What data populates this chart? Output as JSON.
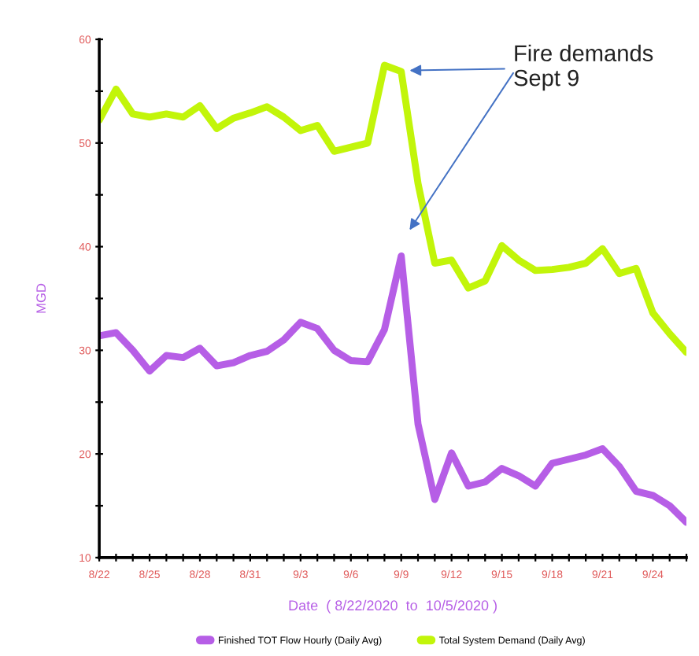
{
  "chart_data": {
    "type": "line",
    "xlabel": "Date  ( 8/22/2020  to  10/5/2020 )",
    "ylabel": "MGD",
    "x": [
      "2020-08-22",
      "2020-08-23",
      "2020-08-24",
      "2020-08-25",
      "2020-08-26",
      "2020-08-27",
      "2020-08-28",
      "2020-08-29",
      "2020-08-30",
      "2020-08-31",
      "2020-09-01",
      "2020-09-02",
      "2020-09-03",
      "2020-09-04",
      "2020-09-05",
      "2020-09-06",
      "2020-09-07",
      "2020-09-08",
      "2020-09-09",
      "2020-09-10",
      "2020-09-11",
      "2020-09-12",
      "2020-09-13",
      "2020-09-14",
      "2020-09-15",
      "2020-09-16",
      "2020-09-17",
      "2020-09-18",
      "2020-09-19",
      "2020-09-20",
      "2020-09-21",
      "2020-09-22",
      "2020-09-23",
      "2020-09-24",
      "2020-09-25",
      "2020-09-26"
    ],
    "series": [
      {
        "name": "Finished TOT Flow Hourly (Daily Avg)",
        "color": "#b65ee6",
        "values": [
          31.4,
          31.7,
          30.0,
          28.0,
          29.5,
          29.3,
          30.2,
          28.5,
          28.8,
          29.5,
          29.9,
          31.0,
          32.7,
          32.1,
          30.0,
          29.0,
          28.9,
          32.0,
          39.1,
          22.9,
          15.6,
          20.1,
          16.9,
          17.3,
          18.6,
          17.9,
          16.9,
          19.1,
          19.5,
          19.9,
          20.5,
          18.8,
          16.4,
          16.0,
          15.0,
          13.4
        ]
      },
      {
        "name": "Total System Demand (Daily Avg)",
        "color": "#c2f50a",
        "values": [
          52.2,
          55.2,
          52.8,
          52.5,
          52.8,
          52.5,
          53.6,
          51.4,
          52.4,
          52.9,
          53.5,
          52.5,
          51.2,
          51.7,
          49.2,
          49.6,
          50.0,
          57.5,
          56.9,
          46.1,
          38.4,
          38.7,
          36.0,
          36.7,
          40.1,
          38.7,
          37.7,
          37.8,
          38.0,
          38.4,
          39.8,
          37.4,
          37.9,
          33.6,
          31.6,
          29.8
        ]
      }
    ],
    "xlim": [
      "2020-08-22",
      "2020-09-26"
    ],
    "xticks": [
      {
        "value": "2020-08-22",
        "label": "8/22"
      },
      {
        "value": "2020-08-23",
        "label": null
      },
      {
        "value": "2020-08-24",
        "label": null
      },
      {
        "value": "2020-08-25",
        "label": "8/25"
      },
      {
        "value": "2020-08-26",
        "label": null
      },
      {
        "value": "2020-08-27",
        "label": null
      },
      {
        "value": "2020-08-28",
        "label": "8/28"
      },
      {
        "value": "2020-08-29",
        "label": null
      },
      {
        "value": "2020-08-30",
        "label": null
      },
      {
        "value": "2020-08-31",
        "label": "8/31"
      },
      {
        "value": "2020-09-01",
        "label": null
      },
      {
        "value": "2020-09-02",
        "label": null
      },
      {
        "value": "2020-09-03",
        "label": "9/3"
      },
      {
        "value": "2020-09-04",
        "label": null
      },
      {
        "value": "2020-09-05",
        "label": null
      },
      {
        "value": "2020-09-06",
        "label": "9/6"
      },
      {
        "value": "2020-09-07",
        "label": null
      },
      {
        "value": "2020-09-08",
        "label": null
      },
      {
        "value": "2020-09-09",
        "label": "9/9"
      },
      {
        "value": "2020-09-10",
        "label": null
      },
      {
        "value": "2020-09-11",
        "label": null
      },
      {
        "value": "2020-09-12",
        "label": "9/12"
      },
      {
        "value": "2020-09-13",
        "label": null
      },
      {
        "value": "2020-09-14",
        "label": null
      },
      {
        "value": "2020-09-15",
        "label": "9/15"
      },
      {
        "value": "2020-09-16",
        "label": null
      },
      {
        "value": "2020-09-17",
        "label": null
      },
      {
        "value": "2020-09-18",
        "label": "9/18"
      },
      {
        "value": "2020-09-19",
        "label": null
      },
      {
        "value": "2020-09-20",
        "label": null
      },
      {
        "value": "2020-09-21",
        "label": "9/21"
      },
      {
        "value": "2020-09-22",
        "label": null
      },
      {
        "value": "2020-09-23",
        "label": null
      },
      {
        "value": "2020-09-24",
        "label": "9/24"
      },
      {
        "value": "2020-09-25",
        "label": null
      },
      {
        "value": "2020-09-26",
        "label": null
      }
    ],
    "ylim": [
      10,
      60
    ],
    "yticks": [
      10,
      {
        "value": 15,
        "label": null
      },
      20,
      {
        "value": 25,
        "label": null
      },
      30,
      {
        "value": 35,
        "label": null
      },
      40,
      {
        "value": 45,
        "label": null
      },
      50,
      {
        "value": 55,
        "label": null
      },
      60
    ],
    "annotations": [
      {
        "text": "Fire demands\nSept 9",
        "x": "2020-09-09T12:00",
        "y": 57.0
      }
    ],
    "legend": "bottom",
    "grid": false,
    "marker": "none",
    "line_style": "solid"
  }
}
